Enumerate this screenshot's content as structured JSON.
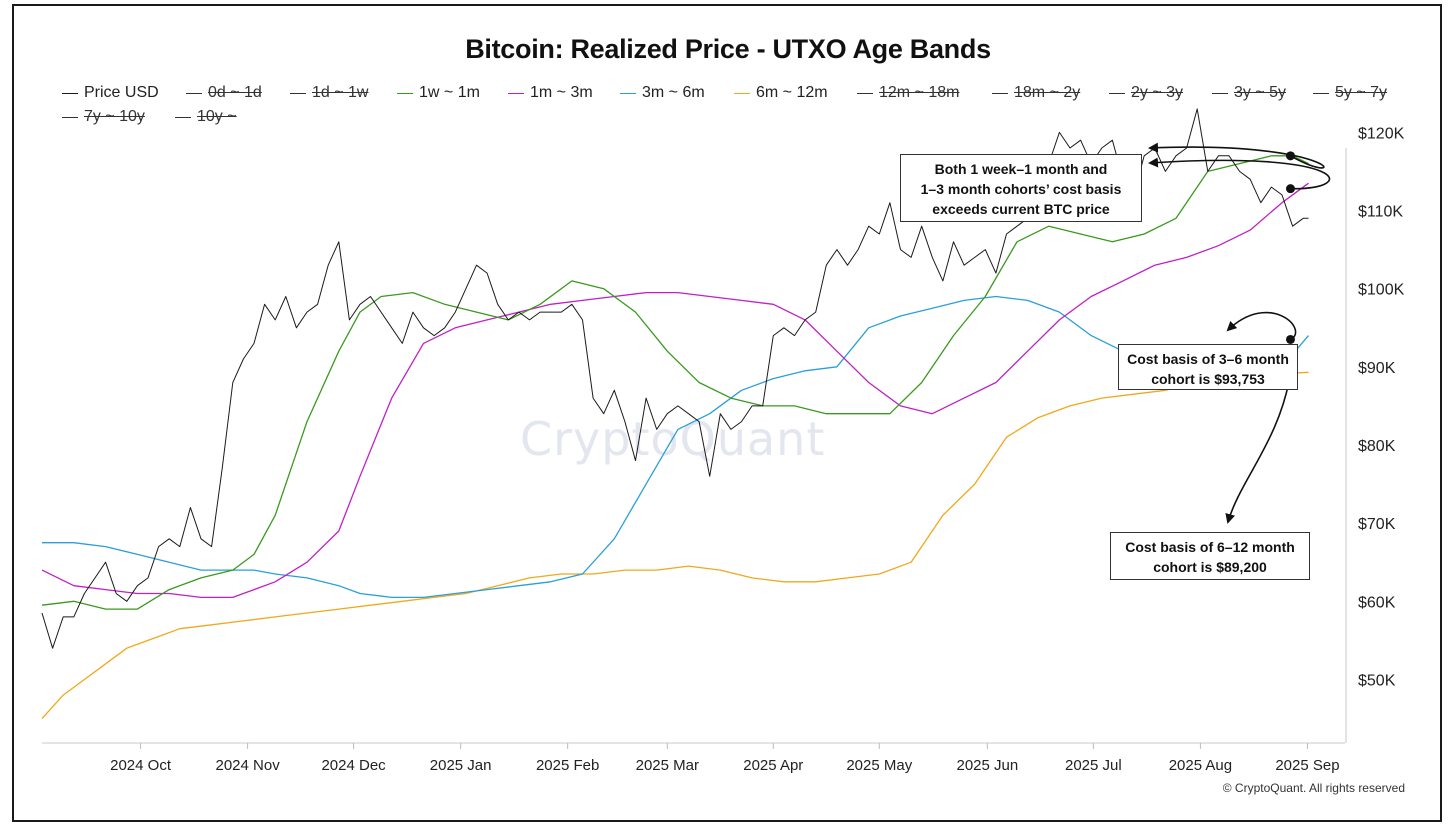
{
  "colors": {
    "price": "#1a1a1a",
    "1w_1m": "#3a9a1e",
    "1m_3m": "#c21fc6",
    "3m_6m": "#2a9fd8",
    "6m_12m": "#f0a81c",
    "disabled": "#333333"
  },
  "legend": {
    "row1": [
      {
        "label": "Price USD",
        "enabled": true,
        "color": "#1a1a1a"
      },
      {
        "label": "0d ~ 1d",
        "enabled": false,
        "color": "#333333"
      },
      {
        "label": "1d ~ 1w",
        "enabled": false,
        "color": "#333333"
      },
      {
        "label": "1w ~ 1m",
        "enabled": true,
        "color": "#3a9a1e"
      },
      {
        "label": "1m ~ 3m",
        "enabled": true,
        "color": "#c21fc6"
      },
      {
        "label": "3m ~ 6m",
        "enabled": true,
        "color": "#2a9fd8"
      },
      {
        "label": "6m ~ 12m",
        "enabled": true,
        "color": "#f0a81c"
      },
      {
        "label": "12m ~ 18m",
        "enabled": false,
        "color": "#333333"
      },
      {
        "label": "18m ~ 2y",
        "enabled": false,
        "color": "#333333"
      },
      {
        "label": "2y ~ 3y",
        "enabled": false,
        "color": "#333333"
      },
      {
        "label": "3y ~ 5y",
        "enabled": false,
        "color": "#333333"
      },
      {
        "label": "5y ~ 7y",
        "enabled": false,
        "color": "#333333"
      }
    ],
    "row2": [
      {
        "label": "7y ~ 10y",
        "enabled": false,
        "color": "#333333"
      },
      {
        "label": "10y ~",
        "enabled": false,
        "color": "#333333"
      }
    ]
  },
  "annotations": {
    "top_line1": "Both 1 week–1 month and",
    "top_line2": "1–3 month cohorts’ cost basis",
    "top_line3": "exceeds current BTC price",
    "mid_line1": "Cost basis of 3–6 month",
    "mid_line2": "cohort is $93,753",
    "bot_line1": "Cost basis of 6–12 month",
    "bot_line2": "cohort is $89,200"
  },
  "watermark": "CryptoQuant",
  "credit": "© CryptoQuant. All rights reserved",
  "chart_data": {
    "type": "line",
    "title": "Bitcoin: Realized Price - UTXO Age Bands",
    "xlabel": "",
    "ylabel": "",
    "x_range": [
      0,
      12.2
    ],
    "x_unit": "months since 2024-09-01 (approx.)",
    "ylim": [
      42,
      118
    ],
    "y_unit": "thousand USD",
    "y_ticks": [
      50,
      60,
      70,
      80,
      90,
      100,
      110,
      120
    ],
    "y_tick_labels": [
      "$50K",
      "$60K",
      "$70K",
      "$80K",
      "$90K",
      "$100K",
      "$110K",
      "$120K"
    ],
    "x_tick_positions": [
      0.93,
      1.94,
      2.94,
      3.95,
      4.96,
      5.9,
      6.9,
      7.9,
      8.92,
      9.92,
      10.93,
      11.94
    ],
    "x_tick_labels": [
      "2024 Oct",
      "2024 Nov",
      "2024 Dec",
      "2025 Jan",
      "2025 Feb",
      "2025 Mar",
      "2025 Apr",
      "2025 May",
      "2025 Jun",
      "2025 Jul",
      "2025 Aug",
      "2025 Sep"
    ],
    "grid": false,
    "series": [
      {
        "name": "Price USD",
        "color": "#1a1a1a",
        "width": 1,
        "x": [
          0,
          0.1,
          0.2,
          0.3,
          0.4,
          0.5,
          0.6,
          0.7,
          0.8,
          0.9,
          1.0,
          1.1,
          1.2,
          1.3,
          1.4,
          1.5,
          1.6,
          1.7,
          1.8,
          1.9,
          2.0,
          2.1,
          2.2,
          2.3,
          2.4,
          2.5,
          2.6,
          2.7,
          2.8,
          2.9,
          3.0,
          3.1,
          3.2,
          3.3,
          3.4,
          3.5,
          3.6,
          3.7,
          3.8,
          3.9,
          4.0,
          4.1,
          4.2,
          4.3,
          4.4,
          4.5,
          4.6,
          4.7,
          4.8,
          4.9,
          5.0,
          5.1,
          5.2,
          5.3,
          5.4,
          5.5,
          5.6,
          5.7,
          5.8,
          5.9,
          6.0,
          6.1,
          6.2,
          6.3,
          6.4,
          6.5,
          6.6,
          6.7,
          6.8,
          6.9,
          7.0,
          7.1,
          7.2,
          7.3,
          7.4,
          7.5,
          7.6,
          7.7,
          7.8,
          7.9,
          8.0,
          8.1,
          8.2,
          8.3,
          8.4,
          8.5,
          8.6,
          8.7,
          8.8,
          8.9,
          9.0,
          9.1,
          9.2,
          9.3,
          9.4,
          9.5,
          9.6,
          9.7,
          9.8,
          9.9,
          10.0,
          10.1,
          10.2,
          10.3,
          10.4,
          10.5,
          10.6,
          10.7,
          10.8,
          10.9,
          11.0,
          11.1,
          11.2,
          11.3,
          11.4,
          11.5,
          11.6,
          11.7,
          11.8,
          11.9,
          11.95
        ],
        "y": [
          58.5,
          54,
          58,
          58,
          61,
          63,
          65,
          61,
          60,
          62,
          63,
          67,
          68,
          67,
          72,
          68,
          67,
          77,
          88,
          91,
          93,
          98,
          96,
          99,
          95,
          97,
          98,
          103,
          106,
          96,
          98,
          99,
          97,
          95,
          93,
          97,
          95,
          94,
          95,
          97,
          100,
          103,
          102,
          98,
          96,
          97,
          96,
          97,
          97,
          97,
          98,
          96,
          86,
          84,
          87,
          83,
          78,
          86,
          82,
          84,
          85,
          84,
          83,
          76,
          84,
          82,
          83,
          85,
          85,
          94,
          95,
          94,
          96,
          97,
          103,
          105,
          103,
          105,
          108,
          107,
          111,
          105,
          104,
          108,
          104,
          101,
          106,
          103,
          104,
          105,
          102,
          107,
          108,
          109,
          113,
          116,
          120,
          118,
          119,
          116,
          118,
          119,
          114,
          112,
          117,
          118,
          115,
          117,
          118,
          123,
          115,
          117,
          117,
          115,
          114,
          111,
          113,
          112,
          108,
          109,
          109
        ]
      },
      {
        "name": "1w ~ 1m",
        "color": "#3a9a1e",
        "width": 1.3,
        "x": [
          0,
          0.3,
          0.6,
          0.9,
          1.2,
          1.5,
          1.8,
          2.0,
          2.2,
          2.5,
          2.8,
          3.0,
          3.2,
          3.5,
          3.8,
          4.1,
          4.4,
          4.7,
          5.0,
          5.3,
          5.6,
          5.9,
          6.2,
          6.5,
          6.8,
          7.1,
          7.4,
          7.7,
          8.0,
          8.3,
          8.6,
          8.9,
          9.2,
          9.5,
          9.8,
          10.1,
          10.4,
          10.7,
          11.0,
          11.3,
          11.6,
          11.8,
          11.95
        ],
        "y": [
          59.5,
          60,
          59,
          59,
          61.5,
          63,
          64,
          66,
          71,
          83,
          92,
          97,
          99,
          99.5,
          98,
          97,
          96,
          98,
          101,
          100,
          97,
          92,
          88,
          86,
          85,
          85,
          84,
          84,
          84,
          88,
          94,
          99,
          106,
          108,
          107,
          106,
          107,
          109,
          115,
          116,
          117,
          117,
          116
        ]
      },
      {
        "name": "1m ~ 3m",
        "color": "#c21fc6",
        "width": 1.3,
        "x": [
          0,
          0.3,
          0.6,
          0.9,
          1.2,
          1.5,
          1.8,
          2.0,
          2.2,
          2.5,
          2.8,
          3.0,
          3.3,
          3.6,
          3.9,
          4.2,
          4.5,
          4.8,
          5.1,
          5.4,
          5.7,
          6.0,
          6.3,
          6.6,
          6.9,
          7.2,
          7.5,
          7.8,
          8.1,
          8.4,
          8.7,
          9.0,
          9.3,
          9.6,
          9.9,
          10.2,
          10.5,
          10.8,
          11.1,
          11.4,
          11.7,
          11.95
        ],
        "y": [
          64,
          62,
          61.5,
          61,
          61,
          60.5,
          60.5,
          61.5,
          62.5,
          65,
          69,
          76,
          86,
          93,
          95,
          96,
          97,
          98,
          98.5,
          99,
          99.5,
          99.5,
          99,
          98.5,
          98,
          96,
          92,
          88,
          85,
          84,
          86,
          88,
          92,
          96,
          99,
          101,
          103,
          104,
          105.5,
          107.5,
          111,
          113.5
        ]
      },
      {
        "name": "3m ~ 6m",
        "color": "#2a9fd8",
        "width": 1.3,
        "x": [
          0,
          0.3,
          0.6,
          0.9,
          1.2,
          1.5,
          1.8,
          2.0,
          2.2,
          2.5,
          2.8,
          3.0,
          3.3,
          3.6,
          3.9,
          4.2,
          4.5,
          4.8,
          5.1,
          5.4,
          5.7,
          6.0,
          6.3,
          6.6,
          6.9,
          7.2,
          7.5,
          7.8,
          8.1,
          8.4,
          8.7,
          9.0,
          9.3,
          9.6,
          9.9,
          10.2,
          10.5,
          10.8,
          11.1,
          11.4,
          11.7,
          11.95
        ],
        "y": [
          67.5,
          67.5,
          67,
          66,
          65,
          64,
          64,
          64,
          63.5,
          63,
          62,
          61,
          60.5,
          60.5,
          61,
          61.5,
          62,
          62.5,
          63.5,
          68,
          75,
          82,
          84,
          87,
          88.5,
          89.5,
          90,
          95,
          96.5,
          97.5,
          98.5,
          99,
          98.5,
          97,
          94,
          92,
          90,
          89,
          88,
          88,
          90,
          94
        ]
      },
      {
        "name": "6m ~ 12m",
        "color": "#f0a81c",
        "width": 1.3,
        "x": [
          0,
          0.2,
          0.4,
          0.6,
          0.8,
          1.0,
          1.3,
          1.6,
          1.9,
          2.2,
          2.5,
          2.8,
          3.1,
          3.4,
          3.7,
          4.0,
          4.3,
          4.6,
          4.9,
          5.2,
          5.5,
          5.8,
          6.1,
          6.4,
          6.7,
          7.0,
          7.3,
          7.6,
          7.9,
          8.2,
          8.5,
          8.8,
          9.1,
          9.4,
          9.7,
          10.0,
          10.3,
          10.6,
          10.9,
          11.2,
          11.5,
          11.8,
          11.95
        ],
        "y": [
          45,
          48,
          50,
          52,
          54,
          55,
          56.5,
          57,
          57.5,
          58,
          58.5,
          59,
          59.5,
          60,
          60.5,
          61,
          62,
          63,
          63.5,
          63.5,
          64,
          64,
          64.5,
          64,
          63,
          62.5,
          62.5,
          63,
          63.5,
          65,
          71,
          75,
          81,
          83.5,
          85,
          86,
          86.5,
          87,
          88,
          88.5,
          89,
          89.2,
          89.3
        ]
      }
    ]
  }
}
